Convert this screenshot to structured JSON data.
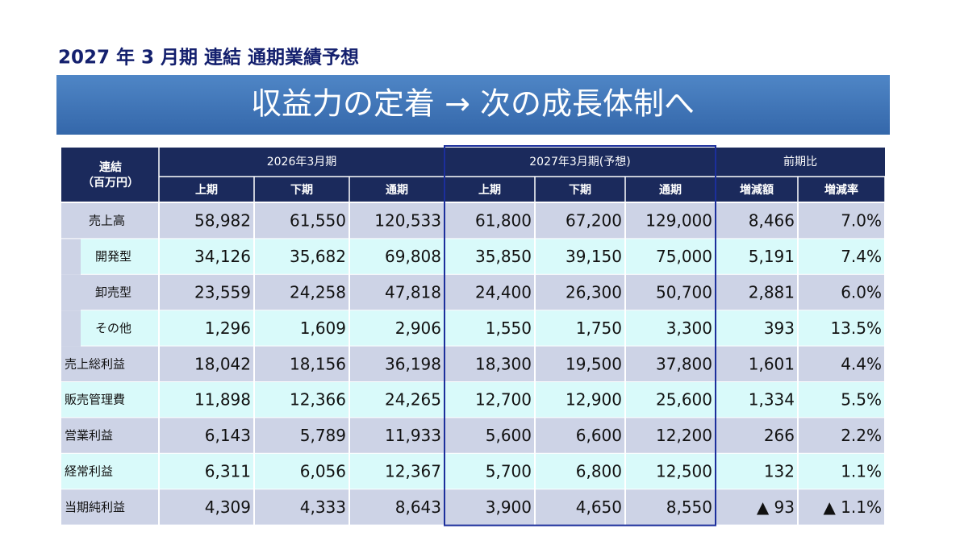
{
  "header": {
    "title": "2027 年 3 月期  連結  通期業績予想",
    "banner": "収益力の定着  →  次の成長体制へ"
  },
  "table": {
    "corner": [
      "連結",
      "（百万円）"
    ],
    "groups": [
      "2026年3月期",
      "2027年3月期(予想)",
      "前期比"
    ],
    "subheaders": [
      "上期",
      "下期",
      "通期",
      "上期",
      "下期",
      "通期",
      "増減額",
      "増減率"
    ],
    "rows": [
      {
        "label": "売上高",
        "values": [
          "58,982",
          "61,550",
          "120,533",
          "61,800",
          "67,200",
          "129,000",
          "8,466",
          "7.0%"
        ],
        "children": [
          {
            "label": "開発型",
            "values": [
              "34,126",
              "35,682",
              "69,808",
              "35,850",
              "39,150",
              "75,000",
              "5,191",
              "7.4%"
            ]
          },
          {
            "label": "卸売型",
            "values": [
              "23,559",
              "24,258",
              "47,818",
              "24,400",
              "26,300",
              "50,700",
              "2,881",
              "6.0%"
            ]
          },
          {
            "label": "その他",
            "values": [
              "1,296",
              "1,609",
              "2,906",
              "1,550",
              "1,750",
              "3,300",
              "393",
              "13.5%"
            ]
          }
        ]
      },
      {
        "label": "売上総利益",
        "values": [
          "18,042",
          "18,156",
          "36,198",
          "18,300",
          "19,500",
          "37,800",
          "1,601",
          "4.4%"
        ]
      },
      {
        "label": "販売管理費",
        "values": [
          "11,898",
          "12,366",
          "24,265",
          "12,700",
          "12,900",
          "25,600",
          "1,334",
          "5.5%"
        ]
      },
      {
        "label": "営業利益",
        "values": [
          "6,143",
          "5,789",
          "11,933",
          "5,600",
          "6,600",
          "12,200",
          "266",
          "2.2%"
        ]
      },
      {
        "label": "経常利益",
        "values": [
          "6,311",
          "6,056",
          "12,367",
          "5,700",
          "6,800",
          "12,500",
          "132",
          "1.1%"
        ]
      },
      {
        "label": "当期純利益",
        "values": [
          "4,309",
          "4,333",
          "8,643",
          "3,900",
          "4,650",
          "8,550",
          "▲ 93",
          "▲ 1.1%"
        ]
      }
    ]
  }
}
